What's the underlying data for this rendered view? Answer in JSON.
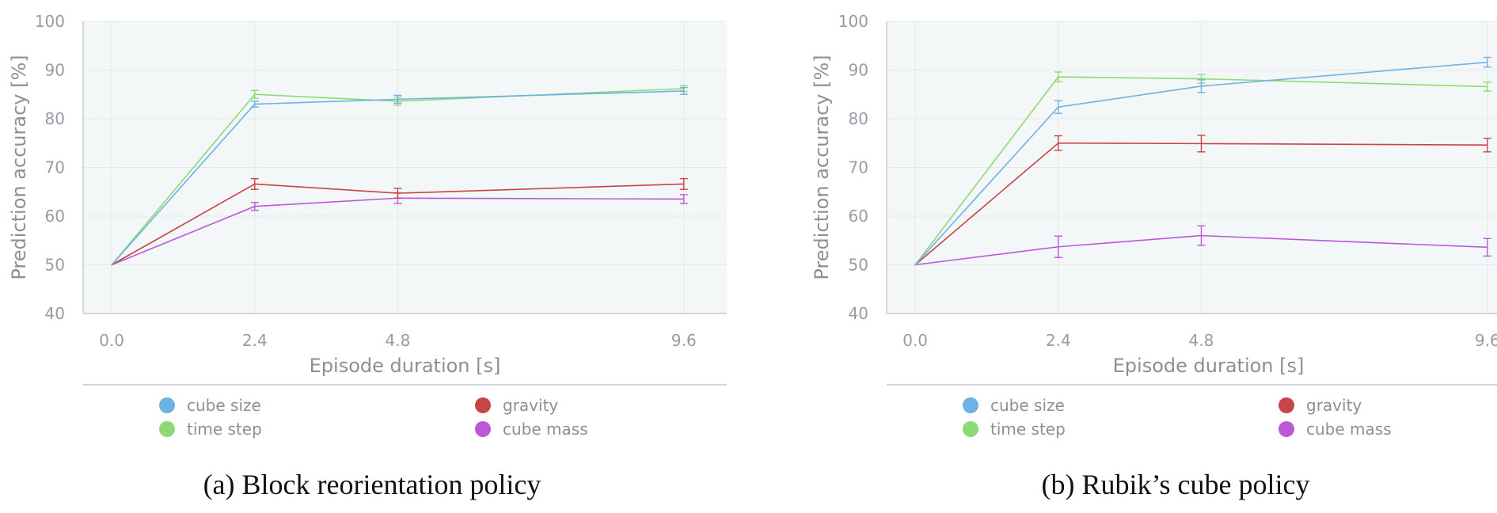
{
  "chart_data": [
    {
      "type": "line",
      "caption": "(a) Block reorientation policy",
      "xlabel": "Episode duration [s]",
      "ylabel": "Prediction accuracy [%]",
      "xlim": [
        -0.48,
        10.32
      ],
      "ylim": [
        40,
        100
      ],
      "x_ticks": [
        "0.0",
        "2.4",
        "4.8",
        "9.6"
      ],
      "y_ticks": [
        "40",
        "50",
        "60",
        "70",
        "80",
        "90",
        "100"
      ],
      "grid": true,
      "legend_position": "bottom",
      "x": [
        0.0,
        2.4,
        4.8,
        9.6
      ],
      "series": [
        {
          "name": "cube size",
          "color": "#6cb2e4",
          "values": [
            50,
            83,
            84,
            85.7
          ],
          "errors": [
            0,
            0.6,
            0.8,
            0.7
          ]
        },
        {
          "name": "time step",
          "color": "#8ed975",
          "values": [
            50,
            85,
            83.6,
            86.2
          ],
          "errors": [
            0,
            0.8,
            0.8,
            0.6
          ]
        },
        {
          "name": "gravity",
          "color": "#c94446",
          "values": [
            50,
            66.6,
            64.7,
            66.6
          ],
          "errors": [
            0,
            1.1,
            1.0,
            1.1
          ]
        },
        {
          "name": "cube mass",
          "color": "#bb58d8",
          "values": [
            50,
            62,
            63.7,
            63.5
          ],
          "errors": [
            0,
            0.8,
            1.1,
            0.9
          ]
        }
      ]
    },
    {
      "type": "line",
      "caption": "(b) Rubik’s cube policy",
      "xlabel": "Episode duration [s]",
      "ylabel": "Prediction accuracy [%]",
      "xlim": [
        -0.48,
        10.32
      ],
      "ylim": [
        40,
        100
      ],
      "x_ticks": [
        "0.0",
        "2.4",
        "4.8",
        "9.6"
      ],
      "y_ticks": [
        "40",
        "50",
        "60",
        "70",
        "80",
        "90",
        "100"
      ],
      "grid": true,
      "legend_position": "bottom",
      "x": [
        0.0,
        2.4,
        4.8,
        9.6
      ],
      "series": [
        {
          "name": "cube size",
          "color": "#6cb2e4",
          "values": [
            50,
            82.4,
            86.7,
            91.6
          ],
          "errors": [
            0,
            1.3,
            1.3,
            1.0
          ]
        },
        {
          "name": "time step",
          "color": "#8ed975",
          "values": [
            50,
            88.6,
            88.2,
            86.6
          ],
          "errors": [
            0,
            1.0,
            0.9,
            0.9
          ]
        },
        {
          "name": "gravity",
          "color": "#c94446",
          "values": [
            50,
            75,
            74.9,
            74.6
          ],
          "errors": [
            0,
            1.5,
            1.7,
            1.4
          ]
        },
        {
          "name": "cube mass",
          "color": "#bb58d8",
          "values": [
            50,
            53.7,
            56,
            53.6
          ],
          "errors": [
            0,
            2.2,
            2.0,
            1.8
          ]
        }
      ]
    }
  ]
}
